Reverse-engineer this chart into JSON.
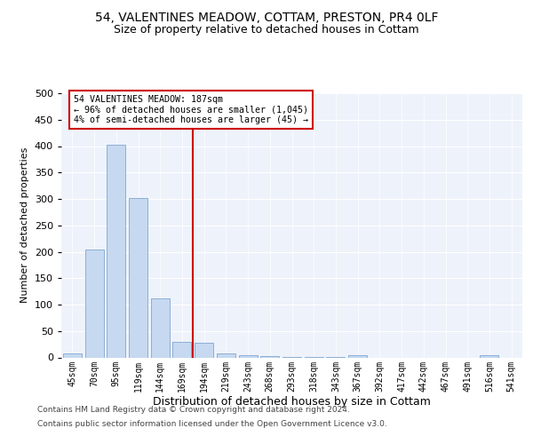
{
  "title_line1": "54, VALENTINES MEADOW, COTTAM, PRESTON, PR4 0LF",
  "title_line2": "Size of property relative to detached houses in Cottam",
  "xlabel": "Distribution of detached houses by size in Cottam",
  "ylabel": "Number of detached properties",
  "categories": [
    "45sqm",
    "70sqm",
    "95sqm",
    "119sqm",
    "144sqm",
    "169sqm",
    "194sqm",
    "219sqm",
    "243sqm",
    "268sqm",
    "293sqm",
    "318sqm",
    "343sqm",
    "367sqm",
    "392sqm",
    "417sqm",
    "442sqm",
    "467sqm",
    "491sqm",
    "516sqm",
    "541sqm"
  ],
  "values": [
    8,
    205,
    402,
    302,
    112,
    30,
    27,
    8,
    5,
    2,
    1,
    1,
    1,
    5,
    0,
    0,
    0,
    0,
    0,
    5,
    0
  ],
  "bar_color": "#c6d9f0",
  "bar_edgecolor": "#7fa8d1",
  "property_label": "54 VALENTINES MEADOW: 187sqm",
  "annotation_line1": "← 96% of detached houses are smaller (1,045)",
  "annotation_line2": "4% of semi-detached houses are larger (45) →",
  "vline_color": "#cc0000",
  "vline_x_index": 6,
  "annotation_box_color": "#cc0000",
  "ylim": [
    0,
    500
  ],
  "yticks": [
    0,
    50,
    100,
    150,
    200,
    250,
    300,
    350,
    400,
    450,
    500
  ],
  "background_color": "#eef2fb",
  "footer_line1": "Contains HM Land Registry data © Crown copyright and database right 2024.",
  "footer_line2": "Contains public sector information licensed under the Open Government Licence v3.0.",
  "title_fontsize": 10,
  "subtitle_fontsize": 9
}
